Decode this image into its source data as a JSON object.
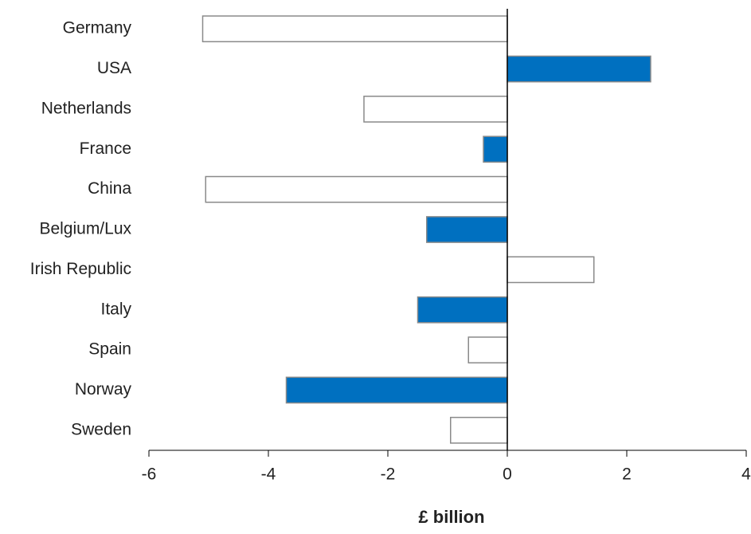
{
  "chart_data": {
    "type": "hbar",
    "x_label": "£ billion",
    "categories": [
      "Germany",
      "USA",
      "Netherlands",
      "France",
      "China",
      "Belgium/Lux",
      "Irish Republic",
      "Italy",
      "Spain",
      "Norway",
      "Sweden"
    ],
    "values": [
      -5.1,
      2.4,
      -2.4,
      -0.4,
      -5.05,
      -1.35,
      1.45,
      -1.5,
      -0.65,
      -3.7,
      -0.95
    ],
    "colors": [
      "#ffffff",
      "#0070c0",
      "#ffffff",
      "#0070c0",
      "#ffffff",
      "#0070c0",
      "#ffffff",
      "#0070c0",
      "#ffffff",
      "#0070c0",
      "#ffffff"
    ],
    "edge_color": "#8a8a8a",
    "xlim": [
      -6,
      4
    ],
    "xticks": [
      -6,
      -4,
      -2,
      0,
      2,
      4
    ],
    "grid": false
  }
}
